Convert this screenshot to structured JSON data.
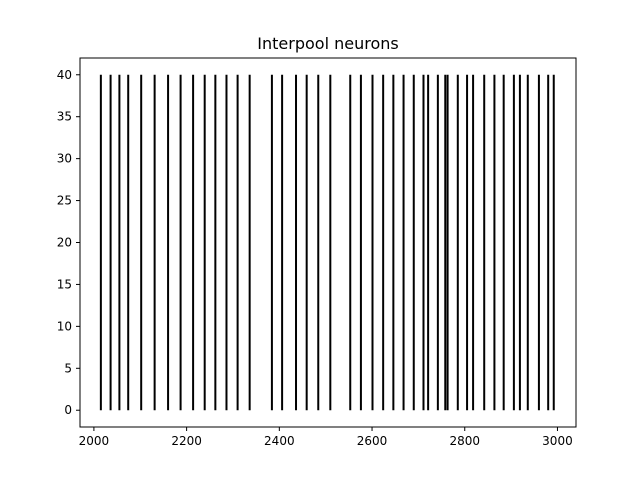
{
  "chart_data": {
    "type": "raster",
    "title": "Interpool neurons",
    "xlabel": "",
    "ylabel": "",
    "xlim": [
      1970,
      3040
    ],
    "ylim": [
      -2,
      42
    ],
    "xticks": [
      2000,
      2200,
      2400,
      2600,
      2800,
      3000
    ],
    "yticks": [
      0,
      5,
      10,
      15,
      20,
      25,
      30,
      35,
      40
    ],
    "grid": false,
    "line_color": "#000000",
    "event_y_range": [
      0,
      40
    ],
    "event_times": [
      2015,
      2036,
      2055,
      2074,
      2102,
      2131,
      2160,
      2187,
      2214,
      2239,
      2262,
      2286,
      2310,
      2336,
      2384,
      2406,
      2436,
      2459,
      2484,
      2510,
      2553,
      2576,
      2601,
      2624,
      2646,
      2668,
      2690,
      2711,
      2721,
      2742,
      2758,
      2763,
      2785,
      2805,
      2818,
      2842,
      2864,
      2884,
      2906,
      2919,
      2936,
      2960,
      2980,
      2992
    ]
  }
}
